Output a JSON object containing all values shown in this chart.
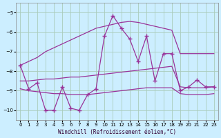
{
  "xlabel": "Windchill (Refroidissement éolien,°C)",
  "background_color": "#cceeff",
  "grid_color": "#aaccbb",
  "line_color": "#993399",
  "xlim": [
    -0.5,
    23.5
  ],
  "ylim": [
    -10.5,
    -4.5
  ],
  "yticks": [
    -10,
    -9,
    -8,
    -7,
    -6,
    -5
  ],
  "xticks": [
    0,
    1,
    2,
    3,
    4,
    5,
    6,
    7,
    8,
    9,
    10,
    11,
    12,
    13,
    14,
    15,
    16,
    17,
    18,
    19,
    20,
    21,
    22,
    23
  ],
  "x": [
    0,
    1,
    2,
    3,
    4,
    5,
    6,
    7,
    8,
    9,
    10,
    11,
    12,
    13,
    14,
    15,
    16,
    17,
    18,
    19,
    20,
    21,
    22,
    23
  ],
  "y_main": [
    -7.7,
    -8.9,
    -8.6,
    -10.0,
    -10.0,
    -8.8,
    -9.9,
    -10.0,
    -9.2,
    -8.9,
    -6.2,
    -5.15,
    -5.8,
    -6.35,
    -7.5,
    -6.2,
    -8.5,
    -7.1,
    -7.1,
    -9.0,
    -8.8,
    -8.45,
    -8.8,
    -8.8
  ],
  "y_rising": [
    -7.7,
    -7.5,
    -7.3,
    -7.0,
    -6.8,
    -6.6,
    -6.4,
    -6.2,
    -6.0,
    -5.8,
    -5.7,
    -5.6,
    -5.5,
    -5.45,
    -5.5,
    -5.6,
    -5.7,
    -5.8,
    -5.9,
    -7.1,
    -7.1,
    -7.1,
    -7.1,
    -7.1
  ],
  "y_mid": [
    -8.5,
    -8.5,
    -8.45,
    -8.4,
    -8.4,
    -8.35,
    -8.3,
    -8.3,
    -8.25,
    -8.2,
    -8.15,
    -8.1,
    -8.05,
    -8.0,
    -7.95,
    -7.9,
    -7.85,
    -7.8,
    -7.75,
    -8.8,
    -8.85,
    -8.85,
    -8.85,
    -8.8
  ],
  "y_lower": [
    -8.9,
    -9.0,
    -9.05,
    -9.1,
    -9.15,
    -9.15,
    -9.2,
    -9.2,
    -9.2,
    -9.15,
    -9.1,
    -9.05,
    -9.0,
    -8.95,
    -8.9,
    -8.85,
    -8.85,
    -8.85,
    -8.85,
    -9.15,
    -9.2,
    -9.2,
    -9.2,
    -9.15
  ]
}
